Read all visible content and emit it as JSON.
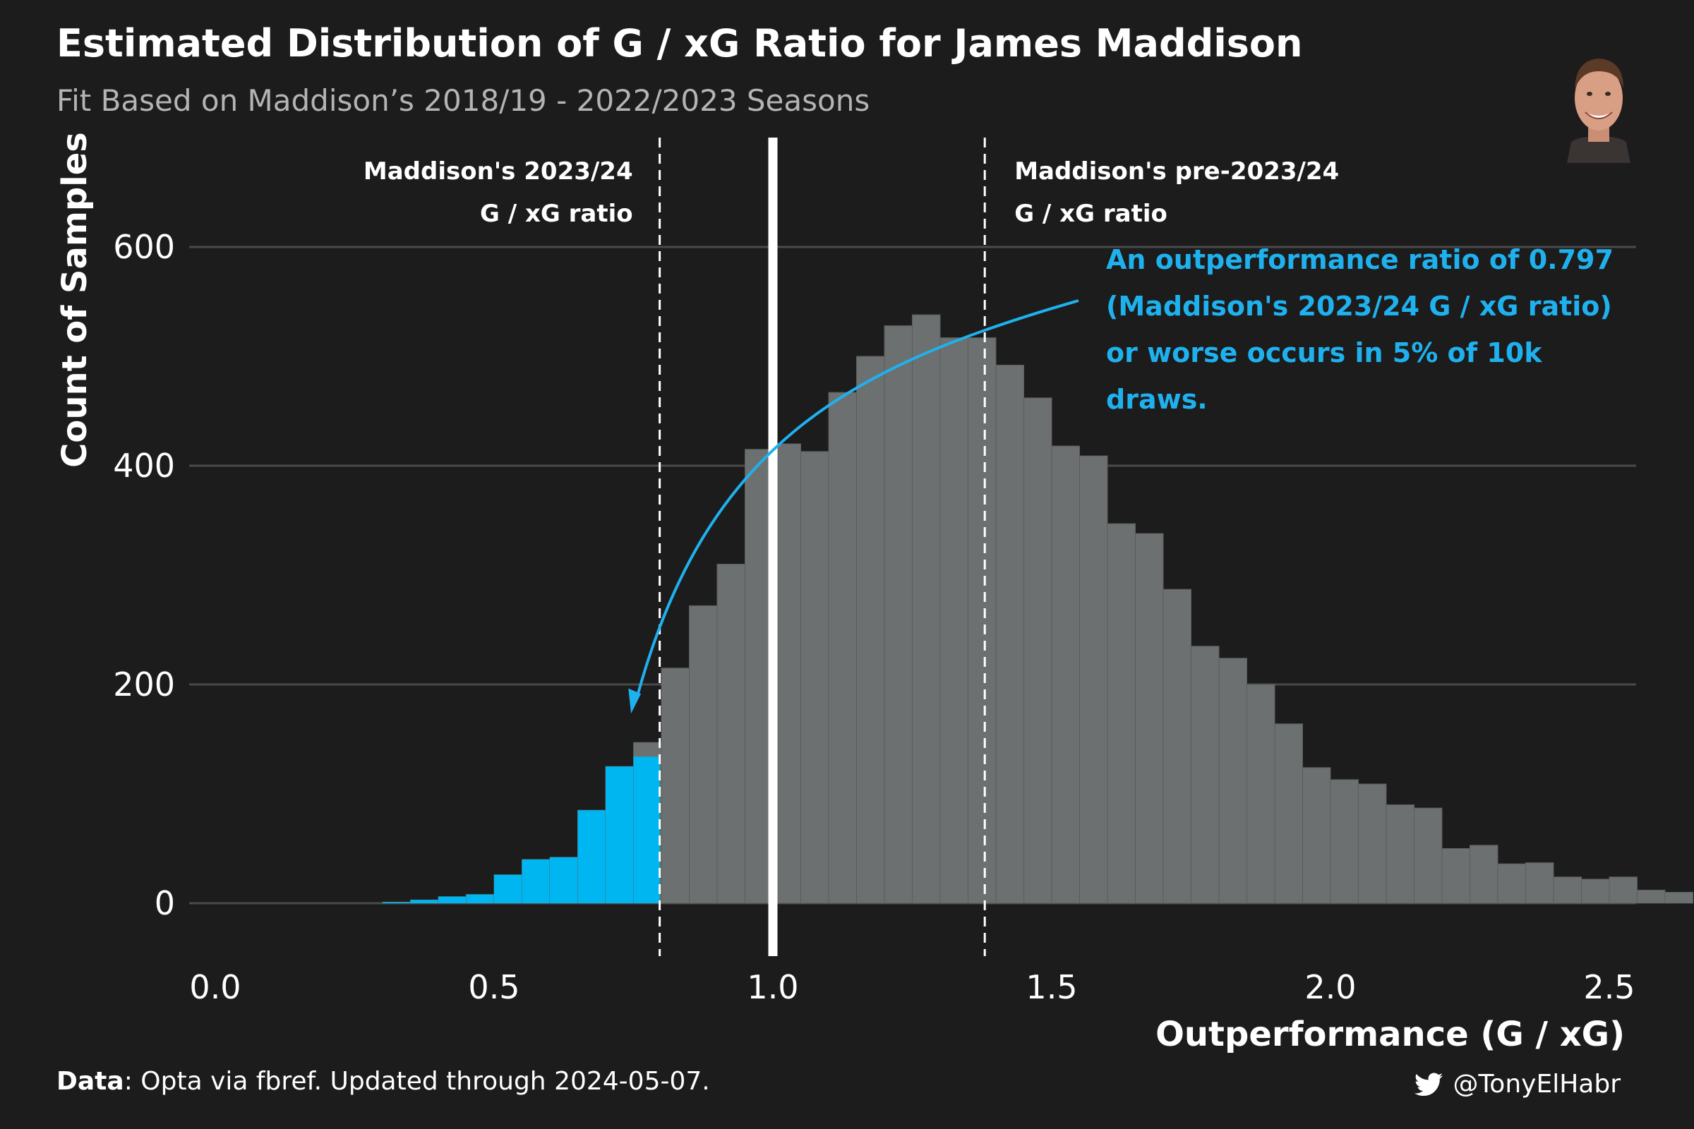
{
  "header": {
    "title": "Estimated Distribution of G / xG Ratio for James Maddison",
    "subtitle": "Fit Based on Maddison’s 2018/19 - 2022/2023 Seasons"
  },
  "footer": {
    "data_label": "Data",
    "data_text": ": Opta via fbref. Updated through 2024-05-07.",
    "handle": "@TonyElHabr",
    "handle_icon": "twitter-bird-icon"
  },
  "colors": {
    "background": "#1c1c1c",
    "highlight": "#00b6f1",
    "bars": "#6d7070",
    "gridline": "#4a4a4a",
    "annotation": "#1fb1ee"
  },
  "chart_data": {
    "type": "bar",
    "subtype": "histogram",
    "xlabel": "Outperformance (G / xG)",
    "ylabel": "Count of Samples",
    "xlim": [
      0,
      2.65
    ],
    "ylim": [
      -50,
      690
    ],
    "x_ticks": [
      "0.0",
      "0.5",
      "1.0",
      "1.5",
      "2.0",
      "2.5"
    ],
    "y_ticks": [
      "0",
      "200",
      "400",
      "600"
    ],
    "bin_width": 0.05,
    "bin_starts": [
      0.3,
      0.35,
      0.4,
      0.45,
      0.5,
      0.55,
      0.6,
      0.65,
      0.7,
      0.75,
      0.8,
      0.85,
      0.9,
      0.95,
      1.0,
      1.05,
      1.1,
      1.15,
      1.2,
      1.25,
      1.3,
      1.35,
      1.4,
      1.45,
      1.5,
      1.55,
      1.6,
      1.65,
      1.7,
      1.75,
      1.8,
      1.85,
      1.9,
      1.95,
      2.0,
      2.05,
      2.1,
      2.15,
      2.2,
      2.25,
      2.3,
      2.35,
      2.4,
      2.45,
      2.5,
      2.55,
      2.6
    ],
    "counts": [
      1,
      3,
      6,
      8,
      26,
      40,
      42,
      85,
      125,
      147,
      215,
      272,
      310,
      415,
      420,
      413,
      467,
      500,
      528,
      538,
      517,
      517,
      492,
      462,
      418,
      409,
      347,
      338,
      287,
      235,
      224,
      200,
      164,
      124,
      113,
      109,
      90,
      87,
      50,
      53,
      36,
      37,
      24,
      22,
      24,
      12,
      10
    ],
    "highlight_counts": [
      1,
      3,
      6,
      8,
      26,
      40,
      42,
      85,
      125,
      134
    ],
    "highlight_threshold": 0.797,
    "legend": "none",
    "grid": "horizontal",
    "reference_lines": [
      {
        "x": 0.797,
        "style": "dashed",
        "label_line1": "Maddison's 2023/24",
        "label_line2": "G / xG ratio"
      },
      {
        "x": 1.0,
        "style": "solid"
      },
      {
        "x": 1.38,
        "style": "dashed",
        "label_line1": "Maddison's pre-2023/24",
        "label_line2": "G / xG ratio"
      }
    ],
    "annotation": {
      "lines": [
        "An outperformance ratio of 0.797",
        "(Maddison's 2023/24 G / xG ratio)",
        "or worse occurs in 5% of 10k",
        "draws."
      ]
    }
  }
}
